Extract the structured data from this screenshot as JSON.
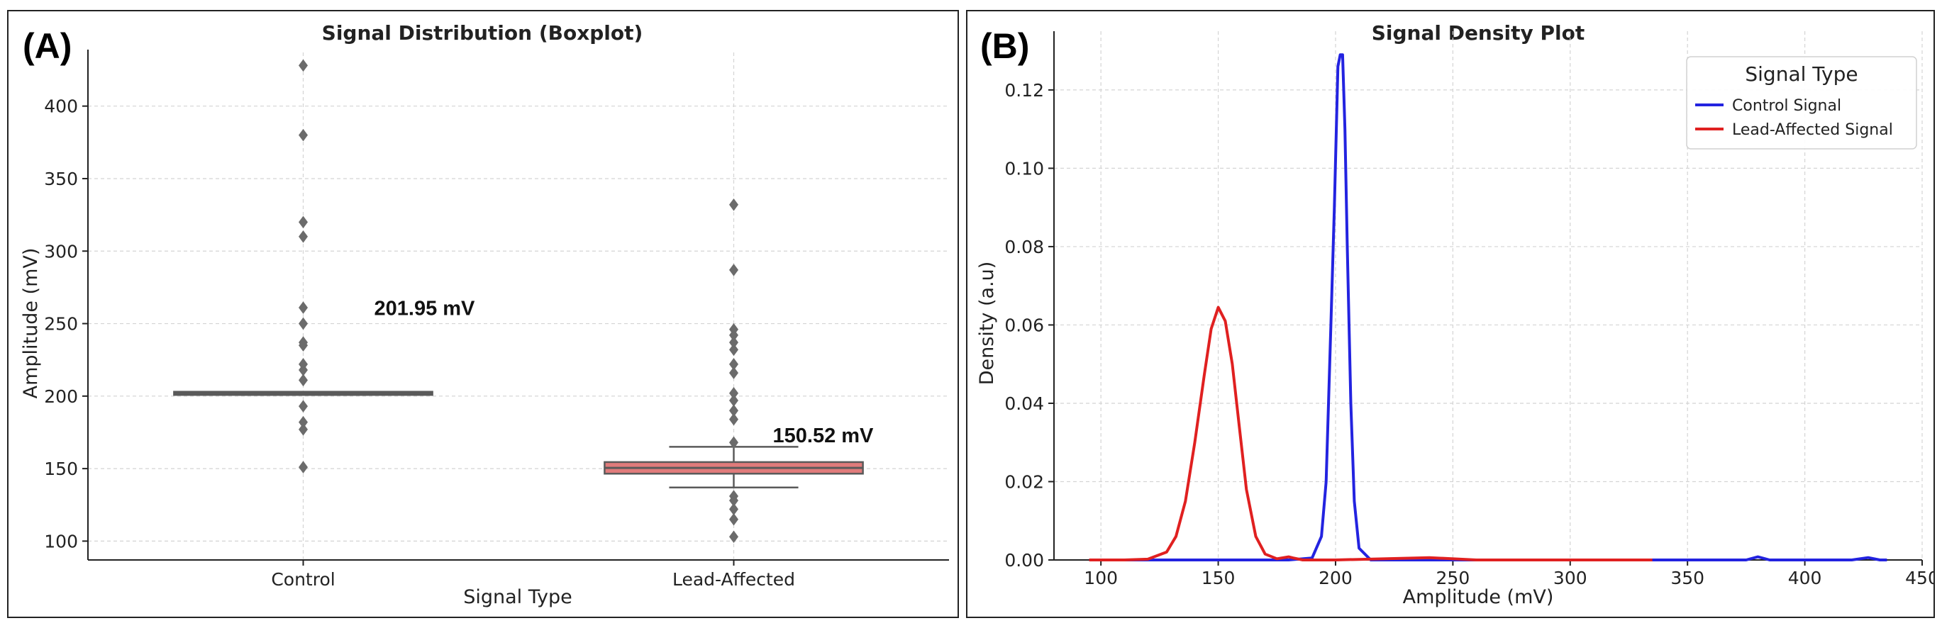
{
  "chart_data": [
    {
      "type": "boxplot",
      "panel_label": "(A)",
      "title": "Signal Distribution (Boxplot)",
      "xlabel": "Signal Type",
      "ylabel": "Amplitude (mV)",
      "ylim": [
        87,
        437
      ],
      "yticks": [
        100,
        150,
        200,
        250,
        300,
        350,
        400
      ],
      "grid": true,
      "categories": [
        "Control",
        "Lead-Affected"
      ],
      "boxes": [
        {
          "name": "Control",
          "color": "#4a78b0",
          "q1": 200.8,
          "median": 202.0,
          "q3": 203.0,
          "whisker_low": 200.8,
          "whisker_high": 203.0,
          "outliers": [
            428,
            380,
            320,
            310,
            261,
            250,
            237,
            235,
            222,
            218,
            211,
            193,
            182,
            177,
            151
          ],
          "annotation": "201.95 mV"
        },
        {
          "name": "Lead-Affected",
          "color": "#e07b7b",
          "q1": 146.5,
          "median": 150.5,
          "q3": 154.5,
          "whisker_low": 137,
          "whisker_high": 165,
          "outliers": [
            332,
            287,
            246,
            242,
            237,
            232,
            222,
            216,
            202,
            197,
            190,
            184,
            168,
            131,
            128,
            122,
            115,
            103
          ],
          "annotation": "150.52 mV"
        }
      ]
    },
    {
      "type": "line",
      "panel_label": "(B)",
      "title": "Signal Density Plot",
      "xlabel": "Amplitude (mV)",
      "ylabel": "Density (a.u)",
      "xlim": [
        80,
        450
      ],
      "ylim": [
        0,
        0.135
      ],
      "xticks": [
        100,
        150,
        200,
        250,
        300,
        350,
        400,
        450
      ],
      "yticks": [
        "0.00",
        "0.02",
        "0.04",
        "0.06",
        "0.08",
        "0.10",
        "0.12"
      ],
      "grid": true,
      "legend": {
        "title": "Signal Type",
        "position": "top-right"
      },
      "series": [
        {
          "name": "Control Signal",
          "color": "#2323e0",
          "x": [
            95,
            150,
            180,
            190,
            194,
            196,
            198,
            199.5,
            201,
            202,
            203,
            204,
            205,
            206.5,
            208,
            210,
            215,
            250,
            300,
            350,
            375,
            380,
            385,
            420,
            427,
            432,
            435
          ],
          "y": [
            0,
            0,
            0,
            0.0005,
            0.006,
            0.02,
            0.06,
            0.09,
            0.126,
            0.129,
            0.129,
            0.11,
            0.08,
            0.04,
            0.015,
            0.003,
            0,
            0,
            0,
            0,
            0,
            0.0008,
            0,
            0,
            0.0006,
            0,
            0
          ]
        },
        {
          "name": "Lead-Affected Signal",
          "color": "#e02020",
          "x": [
            95,
            110,
            120,
            128,
            132,
            136,
            140,
            144,
            147,
            150,
            153,
            156,
            159,
            162,
            166,
            170,
            175,
            180,
            182,
            186,
            190,
            200,
            240,
            260,
            300,
            335
          ],
          "y": [
            0,
            0,
            0.0002,
            0.002,
            0.006,
            0.015,
            0.03,
            0.047,
            0.059,
            0.0645,
            0.061,
            0.05,
            0.034,
            0.018,
            0.006,
            0.0015,
            0.0003,
            0.0008,
            0.0005,
            0,
            0,
            0,
            0.0006,
            0,
            0,
            0
          ]
        }
      ]
    }
  ]
}
